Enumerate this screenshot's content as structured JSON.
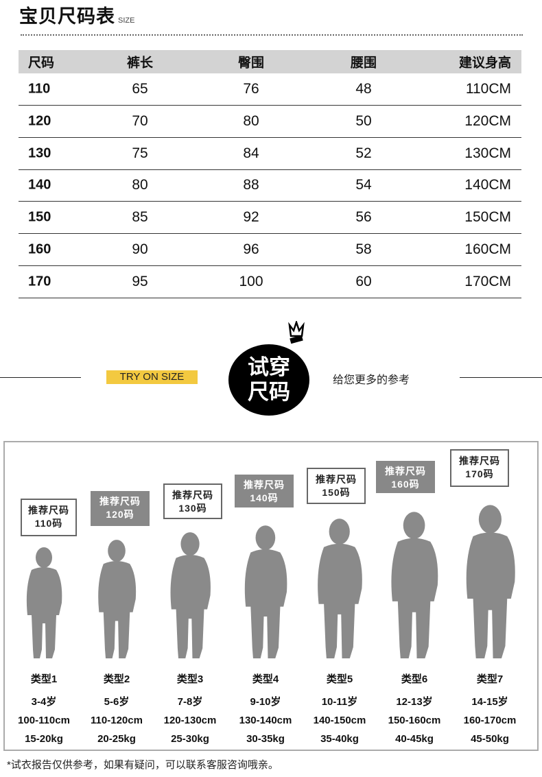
{
  "header": {
    "title": "宝贝尺码表",
    "subtitle": "SIZE"
  },
  "table": {
    "columns": [
      "尺码",
      "裤长",
      "臀围",
      "腰围",
      "建议身高"
    ],
    "rows": [
      [
        "110",
        "65",
        "76",
        "48",
        "110CM"
      ],
      [
        "120",
        "70",
        "80",
        "50",
        "120CM"
      ],
      [
        "130",
        "75",
        "84",
        "52",
        "130CM"
      ],
      [
        "140",
        "80",
        "88",
        "54",
        "140CM"
      ],
      [
        "150",
        "85",
        "92",
        "56",
        "150CM"
      ],
      [
        "160",
        "90",
        "96",
        "58",
        "160CM"
      ],
      [
        "170",
        "95",
        "100",
        "60",
        "170CM"
      ]
    ]
  },
  "banner": {
    "tag": "TRY ON SIZE",
    "circle_line1": "试穿",
    "circle_line2": "尺码",
    "hint": "给您更多的参考",
    "tag_color": "#f3c940"
  },
  "types": [
    {
      "bubble1": "推荐尺码",
      "bubble2": "110码",
      "style": "white",
      "label": "类型1",
      "age": "3-4岁",
      "height": "100-110cm",
      "weight": "15-20kg"
    },
    {
      "bubble1": "推荐尺码",
      "bubble2": "120码",
      "style": "gray",
      "label": "类型2",
      "age": "5-6岁",
      "height": "110-120cm",
      "weight": "20-25kg"
    },
    {
      "bubble1": "推荐尺码",
      "bubble2": "130码",
      "style": "white",
      "label": "类型3",
      "age": "7-8岁",
      "height": "120-130cm",
      "weight": "25-30kg"
    },
    {
      "bubble1": "推荐尺码",
      "bubble2": "140码",
      "style": "gray",
      "label": "类型4",
      "age": "9-10岁",
      "height": "130-140cm",
      "weight": "30-35kg"
    },
    {
      "bubble1": "推荐尺码",
      "bubble2": "150码",
      "style": "white",
      "label": "类型5",
      "age": "10-11岁",
      "height": "140-150cm",
      "weight": "35-40kg"
    },
    {
      "bubble1": "推荐尺码",
      "bubble2": "160码",
      "style": "gray",
      "label": "类型6",
      "age": "12-13岁",
      "height": "150-160cm",
      "weight": "40-45kg"
    },
    {
      "bubble1": "推荐尺码",
      "bubble2": "170码",
      "style": "white",
      "label": "类型7",
      "age": "14-15岁",
      "height": "160-170cm",
      "weight": "45-50kg"
    }
  ],
  "note": "*试衣报告仅供参考，如果有疑问，可以联系客服咨询哦亲。"
}
